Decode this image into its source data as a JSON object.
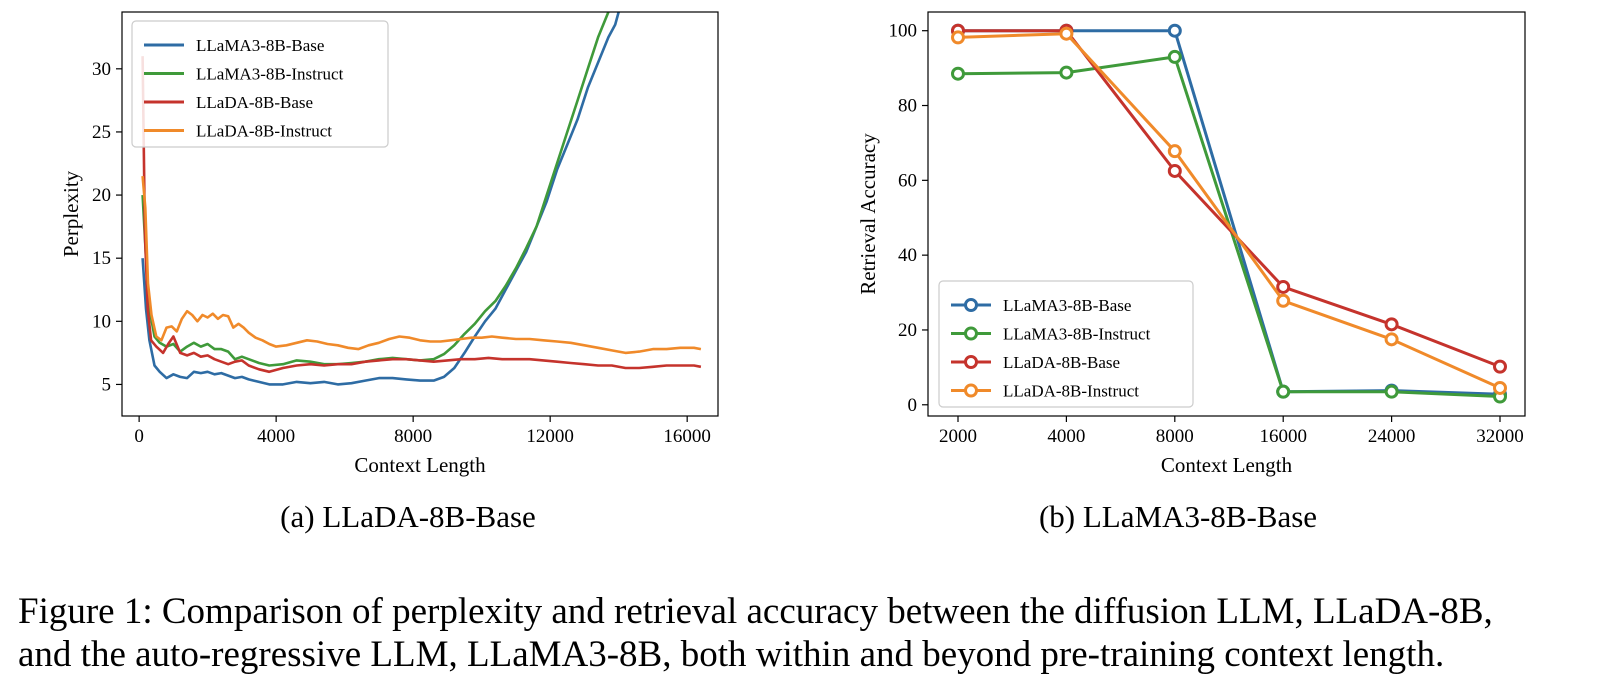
{
  "figure_caption": {
    "line1": "Figure 1: Comparison of perplexity and retrieval accuracy between the diffusion LLM, LLaDA-8B,",
    "line2": "and the auto-regressive LLM, LLaMA3-8B, both within and beyond pre-training context length."
  },
  "colors": {
    "blue": "#2e6ca4",
    "green": "#3f9a3a",
    "red": "#c5332c",
    "orange": "#f08a2a"
  },
  "chart_data": [
    {
      "type": "line",
      "subcaption": "(a) LLaDA-8B-Base",
      "xlabel": "Context Length",
      "ylabel": "Perplexity",
      "xlim": [
        -500,
        16900
      ],
      "ylim": [
        2.5,
        34.5
      ],
      "xticks": [
        0,
        4000,
        8000,
        12000,
        16000
      ],
      "xtick_labels": [
        "0",
        "4000",
        "8000",
        "12000",
        "16000"
      ],
      "yticks": [
        5,
        10,
        15,
        20,
        25,
        30
      ],
      "ytick_labels": [
        "5",
        "10",
        "15",
        "20",
        "25",
        "30"
      ],
      "legend_position": "upper-left",
      "series": [
        {
          "name": "LLaMA3-8B-Base",
          "color_key": "blue",
          "x": [
            100,
            200,
            300,
            450,
            600,
            800,
            1000,
            1200,
            1400,
            1600,
            1800,
            2000,
            2200,
            2400,
            2600,
            2800,
            3000,
            3200,
            3500,
            3800,
            4200,
            4600,
            5000,
            5400,
            5800,
            6200,
            6600,
            7000,
            7400,
            7800,
            8200,
            8600,
            8900,
            9200,
            9500,
            9800,
            10100,
            10400,
            10700,
            11000,
            11300,
            11600,
            11900,
            12200,
            12500,
            12800,
            13100,
            13400,
            13700,
            13900,
            14050
          ],
          "y": [
            15,
            11,
            8.5,
            6.5,
            6,
            5.5,
            5.8,
            5.6,
            5.5,
            6,
            5.9,
            6,
            5.8,
            5.9,
            5.7,
            5.5,
            5.6,
            5.4,
            5.2,
            5,
            5,
            5.2,
            5.1,
            5.2,
            5,
            5.1,
            5.3,
            5.5,
            5.5,
            5.4,
            5.3,
            5.3,
            5.6,
            6.3,
            7.5,
            8.8,
            10,
            11,
            12.5,
            14,
            15.5,
            17.5,
            19.5,
            22,
            24,
            26,
            28.5,
            30.5,
            32.5,
            33.5,
            35
          ]
        },
        {
          "name": "LLaMA3-8B-Instruct",
          "color_key": "green",
          "x": [
            100,
            200,
            300,
            450,
            600,
            800,
            1000,
            1200,
            1400,
            1600,
            1800,
            2000,
            2200,
            2400,
            2600,
            2800,
            3000,
            3200,
            3500,
            3800,
            4200,
            4600,
            5000,
            5400,
            5800,
            6200,
            6600,
            7000,
            7400,
            7800,
            8200,
            8600,
            8900,
            9200,
            9500,
            9800,
            10100,
            10400,
            10700,
            11000,
            11300,
            11600,
            11900,
            12200,
            12500,
            12800,
            13100,
            13400,
            13700,
            13850
          ],
          "y": [
            20,
            15,
            11,
            8.8,
            8.3,
            8,
            8.2,
            7.6,
            8,
            8.3,
            8,
            8.2,
            7.8,
            7.8,
            7.6,
            7,
            7.2,
            7,
            6.7,
            6.5,
            6.6,
            6.9,
            6.8,
            6.6,
            6.6,
            6.7,
            6.8,
            7,
            7.1,
            7,
            6.9,
            7,
            7.4,
            8.1,
            9,
            9.8,
            10.8,
            11.6,
            12.8,
            14.2,
            15.8,
            17.5,
            20,
            22.5,
            25,
            27.5,
            30,
            32.5,
            34.5,
            35
          ]
        },
        {
          "name": "LLaDA-8B-Base",
          "color_key": "red",
          "x": [
            100,
            170,
            250,
            350,
            500,
            700,
            850,
            1000,
            1200,
            1400,
            1600,
            1800,
            2000,
            2200,
            2400,
            2600,
            2800,
            3000,
            3200,
            3500,
            3800,
            4200,
            4600,
            5000,
            5400,
            5800,
            6200,
            6600,
            7000,
            7400,
            7800,
            8200,
            8600,
            9000,
            9400,
            9800,
            10200,
            10600,
            11000,
            11400,
            11800,
            12200,
            12600,
            13000,
            13400,
            13800,
            14200,
            14600,
            15000,
            15400,
            15800,
            16200,
            16400
          ],
          "y": [
            31,
            17,
            11,
            8.5,
            8,
            7.5,
            8.2,
            8.8,
            7.5,
            7.3,
            7.5,
            7.2,
            7.3,
            7,
            6.8,
            6.6,
            6.8,
            6.9,
            6.5,
            6.2,
            6,
            6.3,
            6.5,
            6.6,
            6.5,
            6.6,
            6.6,
            6.8,
            6.9,
            7,
            7,
            6.9,
            6.8,
            6.9,
            7,
            7,
            7.1,
            7,
            7,
            7,
            6.9,
            6.8,
            6.7,
            6.6,
            6.5,
            6.5,
            6.3,
            6.3,
            6.4,
            6.5,
            6.5,
            6.5,
            6.4
          ]
        },
        {
          "name": "LLaDA-8B-Instruct",
          "color_key": "orange",
          "x": [
            100,
            180,
            260,
            360,
            500,
            650,
            800,
            950,
            1100,
            1250,
            1400,
            1550,
            1700,
            1850,
            2000,
            2150,
            2300,
            2450,
            2600,
            2750,
            2900,
            3050,
            3200,
            3400,
            3600,
            3800,
            4000,
            4300,
            4600,
            4900,
            5200,
            5500,
            5800,
            6100,
            6400,
            6700,
            7000,
            7300,
            7600,
            7900,
            8200,
            8500,
            8800,
            9100,
            9400,
            9700,
            10000,
            10300,
            10600,
            11000,
            11400,
            11800,
            12200,
            12600,
            13000,
            13400,
            13800,
            14200,
            14600,
            15000,
            15400,
            15800,
            16200,
            16400
          ],
          "y": [
            21.5,
            19,
            13,
            10.5,
            8.8,
            8.5,
            9.5,
            9.6,
            9.2,
            10.2,
            10.8,
            10.5,
            10,
            10.5,
            10.3,
            10.6,
            10.2,
            10.5,
            10.4,
            9.5,
            9.8,
            9.5,
            9.1,
            8.7,
            8.5,
            8.2,
            8,
            8.1,
            8.3,
            8.5,
            8.4,
            8.2,
            8.1,
            7.9,
            7.8,
            8.1,
            8.3,
            8.6,
            8.8,
            8.7,
            8.5,
            8.4,
            8.4,
            8.5,
            8.6,
            8.7,
            8.7,
            8.8,
            8.7,
            8.6,
            8.6,
            8.5,
            8.4,
            8.3,
            8.1,
            7.9,
            7.7,
            7.5,
            7.6,
            7.8,
            7.8,
            7.9,
            7.9,
            7.8
          ]
        }
      ]
    },
    {
      "type": "line",
      "subcaption": "(b) LLaMA3-8B-Base",
      "xlabel": "Context Length",
      "ylabel": "Retrieval Accuracy",
      "categories": [
        "2000",
        "4000",
        "8000",
        "16000",
        "24000",
        "32000"
      ],
      "ylim": [
        -3,
        105
      ],
      "yticks": [
        0,
        20,
        40,
        60,
        80,
        100
      ],
      "ytick_labels": [
        "0",
        "20",
        "40",
        "60",
        "80",
        "100"
      ],
      "legend_position": "lower-left",
      "markers": "open-circle",
      "series": [
        {
          "name": "LLaMA3-8B-Base",
          "color_key": "blue",
          "values": [
            100,
            100,
            100,
            3.5,
            3.8,
            2.8
          ]
        },
        {
          "name": "LLaMA3-8B-Instruct",
          "color_key": "green",
          "values": [
            88.5,
            88.8,
            93,
            3.5,
            3.5,
            2.2
          ]
        },
        {
          "name": "LLaDA-8B-Base",
          "color_key": "red",
          "values": [
            100,
            100,
            62.5,
            31.5,
            21.5,
            10.2
          ]
        },
        {
          "name": "LLaDA-8B-Instruct",
          "color_key": "orange",
          "values": [
            98.2,
            99.2,
            67.8,
            27.8,
            17.5,
            4.5
          ]
        }
      ]
    }
  ]
}
